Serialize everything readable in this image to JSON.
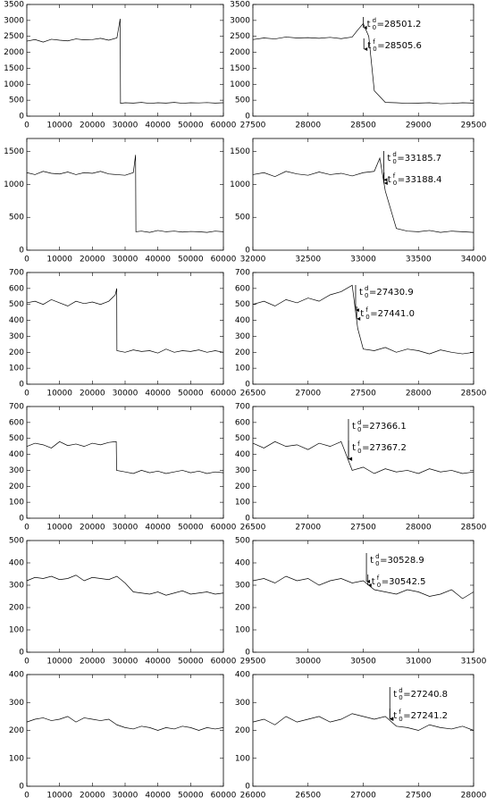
{
  "chart_data": [
    {
      "type": "line",
      "x": [
        0,
        2500,
        5000,
        7500,
        10000,
        12500,
        15000,
        17500,
        20000,
        22500,
        25000,
        27500,
        28500,
        28600,
        30000,
        32500,
        35000,
        37500,
        40000,
        42500,
        45000,
        47500,
        50000,
        52500,
        55000,
        57500,
        60000
      ],
      "series": [
        {
          "color": "#000000",
          "values": [
            2350,
            2400,
            2320,
            2410,
            2380,
            2360,
            2420,
            2390,
            2400,
            2440,
            2380,
            2450,
            3050,
            400,
            420,
            410,
            430,
            400,
            420,
            410,
            430,
            405,
            420,
            415,
            425,
            410,
            420
          ]
        }
      ],
      "xlim": [
        0,
        60000
      ],
      "xticks": [
        0,
        10000,
        20000,
        30000,
        40000,
        50000,
        60000
      ],
      "ylim": [
        0,
        3500
      ],
      "yticks": [
        0,
        500,
        1000,
        1500,
        2000,
        2500,
        3000,
        3500
      ],
      "annotations": []
    },
    {
      "type": "line",
      "x": [
        27500,
        27600,
        27700,
        27800,
        27900,
        28000,
        28100,
        28200,
        28300,
        28400,
        28450,
        28500,
        28550,
        28600,
        28700,
        28800,
        28900,
        29000,
        29100,
        29200,
        29300,
        29400,
        29500
      ],
      "series": [
        {
          "color": "#000000",
          "values": [
            2400,
            2450,
            2420,
            2480,
            2450,
            2460,
            2440,
            2470,
            2430,
            2480,
            2700,
            2900,
            2500,
            800,
            430,
            420,
            400,
            410,
            420,
            390,
            400,
            420,
            410
          ]
        }
      ],
      "xlim": [
        27500,
        29500
      ],
      "xticks": [
        27500,
        28000,
        28500,
        29000,
        29500
      ],
      "ylim": [
        0,
        3500
      ],
      "yticks": [
        0,
        500,
        1000,
        1500,
        2000,
        2500,
        3000,
        3500
      ],
      "annotations": [
        {
          "var": "t",
          "sub": "0",
          "sup": "d",
          "text": "=28501.2",
          "x": 28501.2
        },
        {
          "var": "t",
          "sub": "0",
          "sup": "f",
          "text": "=28505.6",
          "x": 28505.6
        }
      ]
    },
    {
      "type": "line",
      "x": [
        0,
        2500,
        5000,
        7500,
        10000,
        12500,
        15000,
        17500,
        20000,
        22500,
        25000,
        27500,
        30000,
        32500,
        33200,
        33300,
        35000,
        37500,
        40000,
        42500,
        45000,
        47500,
        50000,
        52500,
        55000,
        57500,
        60000
      ],
      "series": [
        {
          "color": "#000000",
          "values": [
            1180,
            1150,
            1200,
            1170,
            1160,
            1190,
            1150,
            1180,
            1170,
            1200,
            1160,
            1150,
            1140,
            1180,
            1450,
            280,
            290,
            270,
            300,
            280,
            290,
            275,
            285,
            280,
            270,
            290,
            280
          ]
        }
      ],
      "xlim": [
        0,
        60000
      ],
      "xticks": [
        0,
        10000,
        20000,
        30000,
        40000,
        50000,
        60000
      ],
      "ylim": [
        0,
        1700
      ],
      "yticks": [
        0,
        500,
        1000,
        1500
      ],
      "annotations": []
    },
    {
      "type": "line",
      "x": [
        32000,
        32100,
        32200,
        32300,
        32400,
        32500,
        32600,
        32700,
        32800,
        32900,
        33000,
        33100,
        33150,
        33200,
        33300,
        33400,
        33500,
        33600,
        33700,
        33800,
        33900,
        34000
      ],
      "series": [
        {
          "color": "#000000",
          "values": [
            1150,
            1180,
            1120,
            1200,
            1160,
            1140,
            1190,
            1150,
            1170,
            1130,
            1180,
            1200,
            1400,
            900,
            330,
            290,
            280,
            300,
            270,
            290,
            280,
            270
          ]
        }
      ],
      "xlim": [
        32000,
        34000
      ],
      "xticks": [
        32000,
        32500,
        33000,
        33500,
        34000
      ],
      "ylim": [
        0,
        1700
      ],
      "yticks": [
        0,
        500,
        1000,
        1500
      ],
      "annotations": [
        {
          "var": "t",
          "sub": "0",
          "sup": "d",
          "text": "=33185.7",
          "x": 33185.7
        },
        {
          "var": "t",
          "sub": "0",
          "sup": "f",
          "text": "=33188.4",
          "x": 33188.4
        }
      ]
    },
    {
      "type": "line",
      "x": [
        0,
        2500,
        5000,
        7500,
        10000,
        12500,
        15000,
        17500,
        20000,
        22500,
        25000,
        27000,
        27450,
        27500,
        30000,
        32500,
        35000,
        37500,
        40000,
        42500,
        45000,
        47500,
        50000,
        52500,
        55000,
        57500,
        60000
      ],
      "series": [
        {
          "color": "#000000",
          "values": [
            510,
            520,
            500,
            530,
            510,
            490,
            520,
            505,
            515,
            500,
            520,
            560,
            600,
            210,
            200,
            215,
            205,
            210,
            195,
            220,
            200,
            210,
            205,
            215,
            200,
            210,
            200
          ]
        }
      ],
      "xlim": [
        0,
        60000
      ],
      "xticks": [
        0,
        10000,
        20000,
        30000,
        40000,
        50000,
        60000
      ],
      "ylim": [
        0,
        700
      ],
      "yticks": [
        0,
        100,
        200,
        300,
        400,
        500,
        600,
        700
      ],
      "annotations": []
    },
    {
      "type": "line",
      "x": [
        26500,
        26600,
        26700,
        26800,
        26900,
        27000,
        27100,
        27200,
        27300,
        27350,
        27400,
        27450,
        27500,
        27600,
        27700,
        27800,
        27900,
        28000,
        28100,
        28200,
        28300,
        28400,
        28500
      ],
      "series": [
        {
          "color": "#000000",
          "values": [
            500,
            520,
            490,
            530,
            510,
            540,
            520,
            560,
            580,
            600,
            620,
            350,
            220,
            210,
            230,
            200,
            220,
            210,
            190,
            215,
            200,
            190,
            200
          ]
        }
      ],
      "xlim": [
        26500,
        28500
      ],
      "xticks": [
        26500,
        27000,
        27500,
        28000,
        28500
      ],
      "ylim": [
        0,
        700
      ],
      "yticks": [
        0,
        100,
        200,
        300,
        400,
        500,
        600,
        700
      ],
      "annotations": [
        {
          "var": "t",
          "sub": "0",
          "sup": "d",
          "text": "=27430.9",
          "x": 27430.9
        },
        {
          "var": "t",
          "sub": "0",
          "sup": "f",
          "text": "=27441.0",
          "x": 27441
        }
      ]
    },
    {
      "type": "line",
      "x": [
        0,
        2500,
        5000,
        7500,
        10000,
        12500,
        15000,
        17500,
        20000,
        22500,
        25000,
        27300,
        27400,
        30000,
        32500,
        35000,
        37500,
        40000,
        42500,
        45000,
        47500,
        50000,
        52500,
        55000,
        57500,
        60000
      ],
      "series": [
        {
          "color": "#000000",
          "values": [
            450,
            470,
            460,
            440,
            480,
            455,
            465,
            450,
            470,
            460,
            475,
            480,
            300,
            290,
            280,
            300,
            285,
            295,
            280,
            290,
            300,
            285,
            295,
            280,
            290,
            285
          ]
        }
      ],
      "xlim": [
        0,
        60000
      ],
      "xticks": [
        0,
        10000,
        20000,
        30000,
        40000,
        50000,
        60000
      ],
      "ylim": [
        0,
        700
      ],
      "yticks": [
        0,
        100,
        200,
        300,
        400,
        500,
        600,
        700
      ],
      "annotations": []
    },
    {
      "type": "line",
      "x": [
        26500,
        26600,
        26700,
        26800,
        26900,
        27000,
        27100,
        27200,
        27300,
        27400,
        27500,
        27600,
        27700,
        27800,
        27900,
        28000,
        28100,
        28200,
        28300,
        28400,
        28500
      ],
      "series": [
        {
          "color": "#000000",
          "values": [
            470,
            440,
            480,
            450,
            460,
            430,
            470,
            450,
            480,
            300,
            320,
            280,
            310,
            290,
            300,
            280,
            310,
            290,
            300,
            280,
            290
          ]
        }
      ],
      "xlim": [
        26500,
        28500
      ],
      "xticks": [
        26500,
        27000,
        27500,
        28000,
        28500
      ],
      "ylim": [
        0,
        700
      ],
      "yticks": [
        0,
        100,
        200,
        300,
        400,
        500,
        600,
        700
      ],
      "annotations": [
        {
          "var": "t",
          "sub": "0",
          "sup": "d",
          "text": "=27366.1",
          "x": 27366.1
        },
        {
          "var": "t",
          "sub": "0",
          "sup": "f",
          "text": "=27367.2",
          "x": 27367.2
        }
      ]
    },
    {
      "type": "line",
      "x": [
        0,
        2500,
        5000,
        7500,
        10000,
        12500,
        15000,
        17500,
        20000,
        22500,
        25000,
        27500,
        30000,
        32500,
        35000,
        37500,
        40000,
        42500,
        45000,
        47500,
        50000,
        52500,
        55000,
        57500,
        60000
      ],
      "series": [
        {
          "color": "#000000",
          "values": [
            320,
            335,
            330,
            340,
            325,
            330,
            345,
            320,
            335,
            330,
            325,
            340,
            310,
            270,
            265,
            260,
            270,
            255,
            265,
            275,
            260,
            265,
            270,
            260,
            265
          ]
        }
      ],
      "xlim": [
        0,
        60000
      ],
      "xticks": [
        0,
        10000,
        20000,
        30000,
        40000,
        50000,
        60000
      ],
      "ylim": [
        0,
        500
      ],
      "yticks": [
        0,
        100,
        200,
        300,
        400,
        500
      ],
      "annotations": []
    },
    {
      "type": "line",
      "x": [
        29500,
        29600,
        29700,
        29800,
        29900,
        30000,
        30100,
        30200,
        30300,
        30400,
        30500,
        30600,
        30700,
        30800,
        30900,
        31000,
        31100,
        31200,
        31300,
        31400,
        31500
      ],
      "series": [
        {
          "color": "#000000",
          "values": [
            320,
            330,
            310,
            340,
            320,
            330,
            300,
            320,
            330,
            310,
            320,
            280,
            270,
            260,
            280,
            270,
            250,
            260,
            280,
            240,
            270
          ]
        }
      ],
      "xlim": [
        29500,
        31500
      ],
      "xticks": [
        29500,
        30000,
        30500,
        31000,
        31500
      ],
      "ylim": [
        0,
        500
      ],
      "yticks": [
        0,
        100,
        200,
        300,
        400,
        500
      ],
      "annotations": [
        {
          "var": "t",
          "sub": "0",
          "sup": "d",
          "text": "=30528.9",
          "x": 30528.9
        },
        {
          "var": "t",
          "sub": "0",
          "sup": "f",
          "text": "=30542.5",
          "x": 30542.5
        }
      ]
    },
    {
      "type": "line",
      "x": [
        0,
        2500,
        5000,
        7500,
        10000,
        12500,
        15000,
        17500,
        20000,
        22500,
        25000,
        27500,
        30000,
        32500,
        35000,
        37500,
        40000,
        42500,
        45000,
        47500,
        50000,
        52500,
        55000,
        57500,
        60000
      ],
      "series": [
        {
          "color": "#000000",
          "values": [
            230,
            240,
            245,
            235,
            240,
            250,
            230,
            245,
            240,
            235,
            240,
            220,
            210,
            205,
            215,
            210,
            200,
            210,
            205,
            215,
            210,
            200,
            210,
            205,
            210
          ]
        }
      ],
      "xlim": [
        0,
        60000
      ],
      "xticks": [
        0,
        10000,
        20000,
        30000,
        40000,
        50000,
        60000
      ],
      "ylim": [
        0,
        400
      ],
      "yticks": [
        0,
        100,
        200,
        300,
        400
      ],
      "annotations": []
    },
    {
      "type": "line",
      "x": [
        26000,
        26100,
        26200,
        26300,
        26400,
        26500,
        26600,
        26700,
        26800,
        26900,
        27000,
        27100,
        27200,
        27300,
        27400,
        27500,
        27600,
        27700,
        27800,
        27900,
        28000
      ],
      "series": [
        {
          "color": "#000000",
          "values": [
            230,
            240,
            220,
            250,
            230,
            240,
            250,
            230,
            240,
            260,
            250,
            240,
            250,
            215,
            210,
            200,
            220,
            210,
            205,
            215,
            200
          ]
        }
      ],
      "xlim": [
        26000,
        28000
      ],
      "xticks": [
        26000,
        26500,
        27000,
        27500,
        28000
      ],
      "ylim": [
        0,
        400
      ],
      "yticks": [
        0,
        100,
        200,
        300,
        400
      ],
      "annotations": [
        {
          "var": "t",
          "sub": "0",
          "sup": "d",
          "text": "=27240.8",
          "x": 27240.8
        },
        {
          "var": "t",
          "sub": "0",
          "sup": "f",
          "text": "=27241.2",
          "x": 27241.2
        }
      ]
    }
  ]
}
